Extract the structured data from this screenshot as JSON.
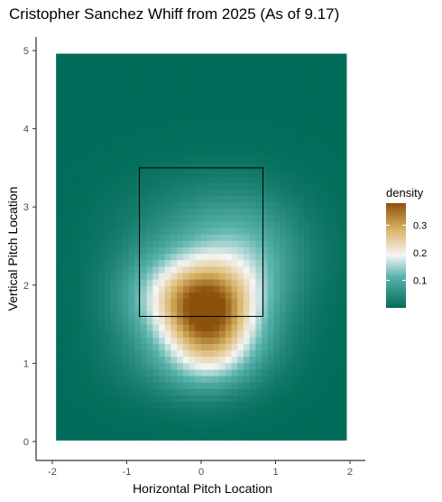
{
  "title": "Cristopher Sanchez Whiff from 2025 (As of 9.17)",
  "chart_data": {
    "type": "heatmap",
    "title": "Cristopher Sanchez Whiff from 2025 (As of 9.17)",
    "xlabel": "Horizontal Pitch Location",
    "ylabel": "Vertical Pitch Location",
    "xlim": [
      -2,
      2
    ],
    "ylim": [
      0,
      5
    ],
    "x_ticks": [
      -2,
      -1,
      0,
      1,
      2
    ],
    "y_ticks": [
      0,
      1,
      2,
      3,
      4,
      5
    ],
    "strike_zone": {
      "x": [
        -0.83,
        0.83
      ],
      "y": [
        1.6,
        3.5
      ]
    },
    "density_peaks": [
      {
        "x": 0.05,
        "y": 1.8,
        "density": 0.38
      },
      {
        "x": 0.1,
        "y": 1.35,
        "density": 0.3
      }
    ],
    "legend": {
      "title": "density",
      "ticks": [
        0.1,
        0.2,
        0.3
      ],
      "range": [
        0.0,
        0.38
      ],
      "placement": "right"
    },
    "colors": {
      "low": "#016c59",
      "mid_low": "#5ab4ac",
      "mid": "#f5f5f5",
      "mid_high": "#d8b365",
      "high": "#8c510a"
    }
  }
}
